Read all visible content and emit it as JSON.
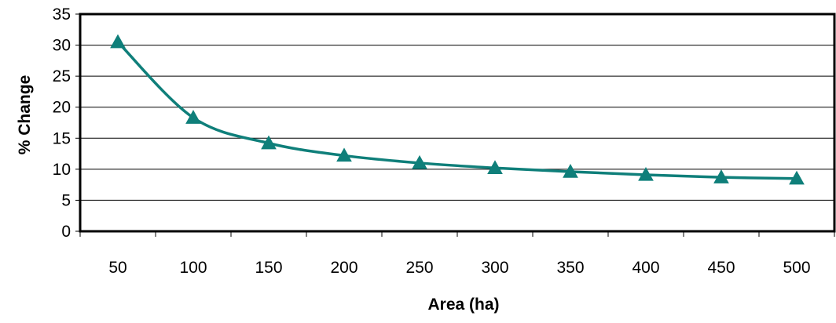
{
  "chart_data": {
    "type": "line",
    "title": "",
    "xlabel": "Area (ha)",
    "ylabel": "% Change",
    "categories": [
      "50",
      "100",
      "150",
      "200",
      "250",
      "300",
      "350",
      "400",
      "450",
      "500"
    ],
    "series": [
      {
        "values": [
          30.5,
          18.3,
          14.2,
          12.2,
          11.0,
          10.2,
          9.6,
          9.1,
          8.7,
          8.5
        ],
        "color": "#0f7f7a",
        "marker": "triangle"
      }
    ],
    "ylim": [
      0,
      35
    ],
    "yticks": [
      0,
      5,
      10,
      15,
      20,
      25,
      30,
      35
    ],
    "grid": true,
    "legend": "none"
  }
}
